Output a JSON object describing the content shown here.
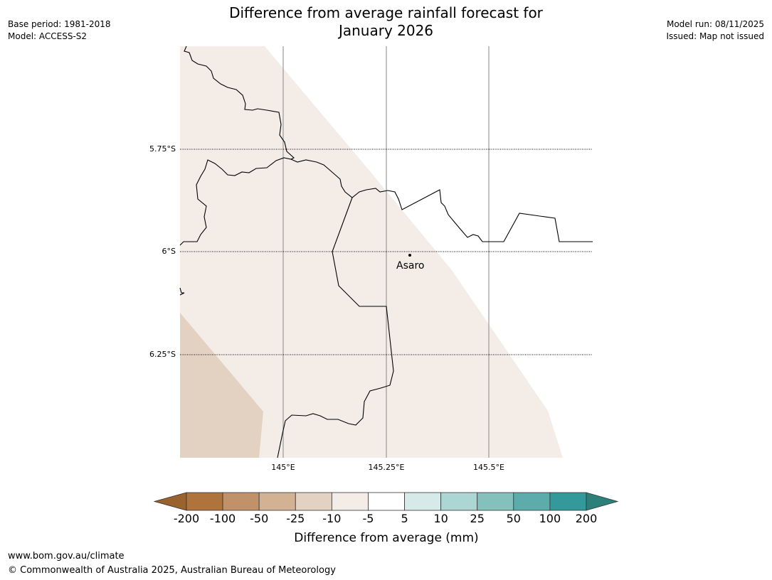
{
  "header": {
    "title_line1": "Difference from average rainfall forecast for",
    "title_line2": "January 2026",
    "base_period": "Base period: 1981-2018",
    "model": "Model: ACCESS-S2",
    "model_run": "Model run: 08/11/2025",
    "issued": "Issued: Map not issued"
  },
  "map": {
    "latitude_labels": [
      "5.75°S",
      "6°S",
      "6.25°S"
    ],
    "longitude_labels": [
      "145°E",
      "145.25°E",
      "145.5°E"
    ],
    "place": {
      "name": "Asaro"
    },
    "fill_colors": {
      "light": "#f4ede7",
      "medium": "#e3d1c1"
    }
  },
  "colorbar": {
    "title": "Difference from average (mm)",
    "tick_labels": [
      "-200",
      "-100",
      "-50",
      "-25",
      "-10",
      "-5",
      "5",
      "10",
      "25",
      "50",
      "100",
      "200"
    ],
    "colors": [
      "#9a632e",
      "#ae743b",
      "#c19269",
      "#d3b294",
      "#e3d1c1",
      "#f4ede7",
      "#ffffff",
      "#d6eaea",
      "#abd6d4",
      "#84c1bd",
      "#5bacaa",
      "#34999a",
      "#2b8079"
    ]
  },
  "footer": {
    "url": "www.bom.gov.au/climate",
    "copyright": "© Commonwealth of Australia 2025, Australian Bureau of Meteorology"
  }
}
